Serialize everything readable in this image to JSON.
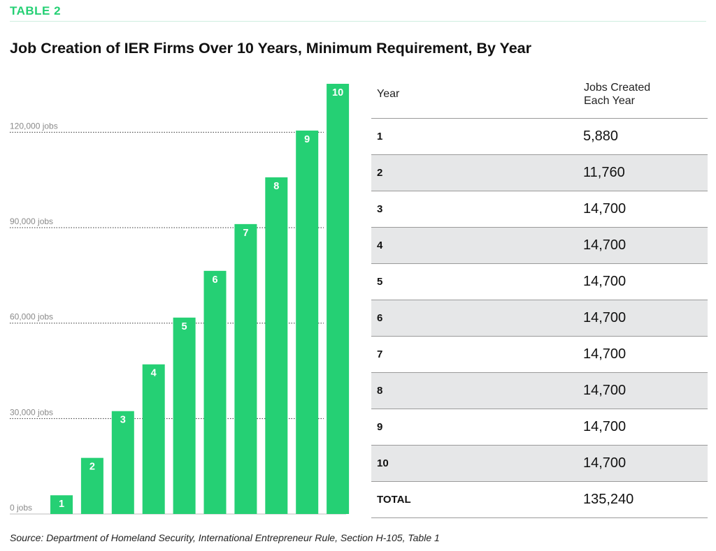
{
  "header": {
    "tag": "TABLE 2",
    "title": "Job Creation of IER Firms Over 10 Years, Minimum Requirement, By Year"
  },
  "colors": {
    "accent": "#25d074",
    "bar": "#25d074",
    "row_shade": "#e6e7e8"
  },
  "chart_data": {
    "type": "bar",
    "title": "Job Creation of IER Firms Over 10 Years, Minimum Requirement, By Year",
    "categories": [
      "1",
      "2",
      "3",
      "4",
      "5",
      "6",
      "7",
      "8",
      "9",
      "10"
    ],
    "values": [
      5880,
      17640,
      32340,
      47040,
      61740,
      76440,
      91140,
      105840,
      120540,
      135240
    ],
    "ylim": [
      0,
      135240
    ],
    "yticks": [
      0,
      30000,
      60000,
      90000,
      120000
    ],
    "ytick_labels": [
      "0 jobs",
      "30,000 jobs",
      "60,000 jobs",
      "90,000 jobs",
      "120,000 jobs"
    ],
    "grid": "dotted horizontal lines at ticks",
    "xlabel": "",
    "ylabel": ""
  },
  "table": {
    "col_year": "Year",
    "col_jobs_line1": "Jobs Created",
    "col_jobs_line2": "Each Year",
    "rows": [
      {
        "year": "1",
        "jobs": "5,880"
      },
      {
        "year": "2",
        "jobs": "11,760"
      },
      {
        "year": "3",
        "jobs": "14,700"
      },
      {
        "year": "4",
        "jobs": "14,700"
      },
      {
        "year": "5",
        "jobs": "14,700"
      },
      {
        "year": "6",
        "jobs": "14,700"
      },
      {
        "year": "7",
        "jobs": "14,700"
      },
      {
        "year": "8",
        "jobs": "14,700"
      },
      {
        "year": "9",
        "jobs": "14,700"
      },
      {
        "year": "10",
        "jobs": "14,700"
      }
    ],
    "total_label": "TOTAL",
    "total_value": "135,240"
  },
  "source": "Source: Department of Homeland Security, International Entrepreneur Rule, Section H-105, Table 1"
}
